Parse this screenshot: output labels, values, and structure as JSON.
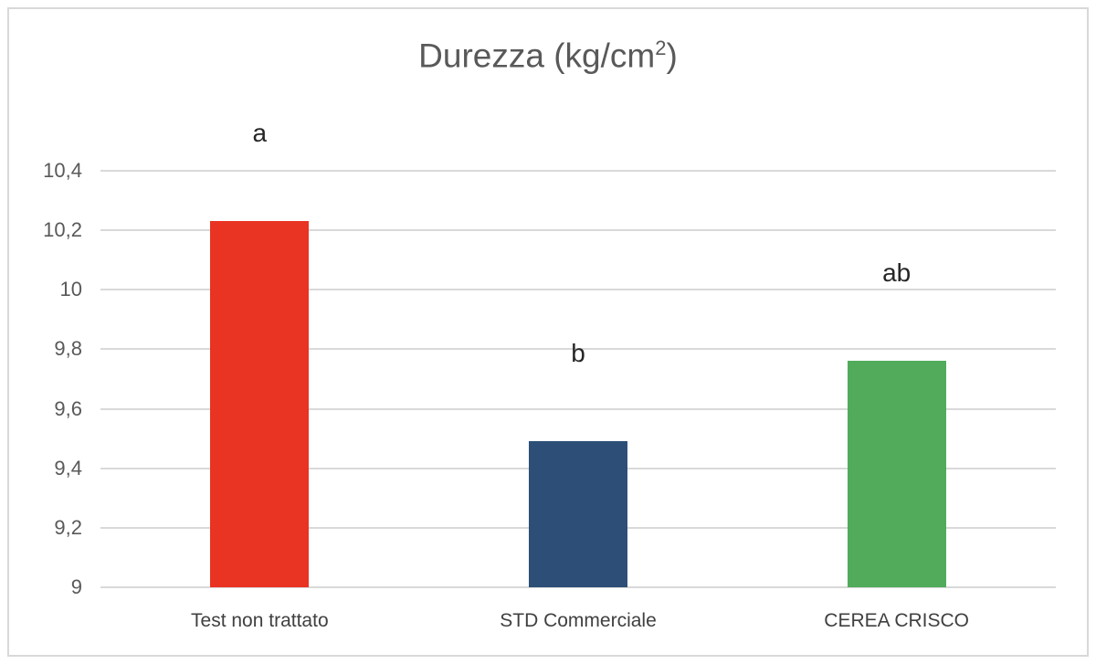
{
  "chart_data": {
    "type": "bar",
    "title": "Durezza (kg/cm²)",
    "title_main": "Durezza (kg/cm",
    "title_sup": "2",
    "title_end": ")",
    "xlabel": "",
    "ylabel": "",
    "ylim": [
      9,
      10.4
    ],
    "yticks": [
      "9",
      "9,2",
      "9,4",
      "9,6",
      "9,8",
      "10",
      "10,2",
      "10,4"
    ],
    "categories": [
      "Test non trattato",
      "STD Commerciale",
      "CEREA CRISCO"
    ],
    "values": [
      10.23,
      9.49,
      9.76
    ],
    "colors": [
      "#e93323",
      "#2d4f77",
      "#51ab5b"
    ],
    "annotations": [
      "a",
      "b",
      "ab"
    ],
    "grid": true,
    "legend": "none"
  }
}
